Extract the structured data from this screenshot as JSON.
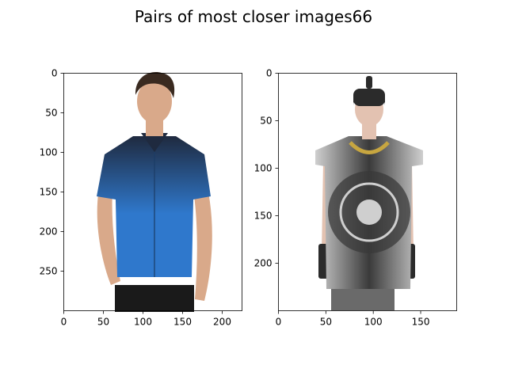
{
  "figure": {
    "title": "Pairs of most closer images66"
  },
  "chart_data": [
    {
      "type": "image",
      "name": "left-image",
      "image_width": 225,
      "image_height": 300,
      "xticks": [
        0,
        50,
        100,
        150,
        200
      ],
      "yticks": [
        0,
        50,
        100,
        150,
        200,
        250
      ],
      "content": {
        "shirt_dark": "#1f2a3f",
        "shirt_light": "#2f78cc",
        "skin": "#d9a98a",
        "hair": "#3a2a20",
        "pants": "#1a1a1a"
      }
    },
    {
      "type": "image",
      "name": "right-image",
      "image_width": 188,
      "image_height": 250,
      "xticks": [
        0,
        50,
        100,
        150
      ],
      "yticks": [
        0,
        50,
        100,
        150,
        200
      ],
      "content": {
        "armor_light": "#cfcfcf",
        "armor_dark": "#3a3a3a",
        "skin": "#e3c2b1",
        "gold": "#c7a640",
        "helmet": "#2b2b2b"
      }
    }
  ]
}
